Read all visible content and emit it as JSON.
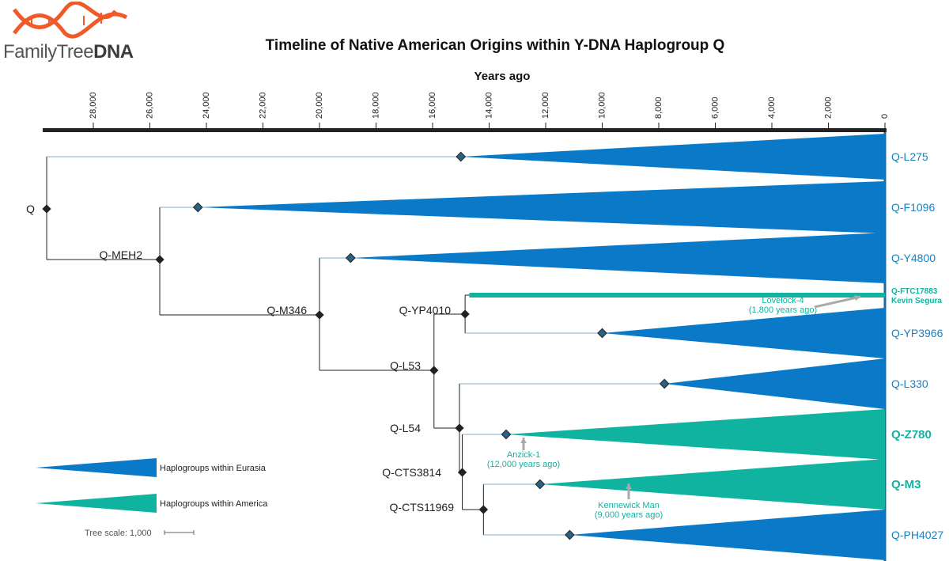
{
  "header": {
    "logo_text_plain": "FamilyTree",
    "logo_text_bold": "DNA",
    "title": "Timeline of Native American Origins within Y-DNA Haplogroup Q"
  },
  "colors": {
    "eurasia": "#0a7ac8",
    "america": "#10b3a0",
    "branch": "#222222",
    "axis": "#222222",
    "logo": "#f05a28"
  },
  "chart_data": {
    "type": "phylogenetic-timeline",
    "xlabel": "Years ago",
    "xlim": [
      30000,
      0
    ],
    "ticks": [
      28000,
      26000,
      24000,
      22000,
      20000,
      18000,
      16000,
      14000,
      12000,
      10000,
      8000,
      6000,
      4000,
      2000,
      0
    ],
    "tick_labels": [
      "28,000",
      "26,000",
      "24,000",
      "22,000",
      "20,000",
      "18,000",
      "16,000",
      "14,000",
      "12,000",
      "10,000",
      "8,000",
      "6,000",
      "4,000",
      "2,000",
      "0"
    ],
    "nodes": [
      {
        "name": "Q",
        "age": 29650
      },
      {
        "name": "Q-MEH2",
        "age": 25650
      },
      {
        "name": "Q-M346",
        "age": 20000
      },
      {
        "name": "Q-L53",
        "age": 15950
      },
      {
        "name": "Q-YP4010",
        "age": 14850
      },
      {
        "name": "Q-L54",
        "age": 15050
      },
      {
        "name": "Q-CTS3814",
        "age": 14950
      },
      {
        "name": "Q-CTS11969",
        "age": 14200
      }
    ],
    "haplogroups": [
      {
        "name": "Q-L275",
        "origin": "Eurasia",
        "tmrca": 15000
      },
      {
        "name": "Q-F1096",
        "origin": "Eurasia",
        "tmrca": 24300
      },
      {
        "name": "Q-Y4800",
        "origin": "Eurasia",
        "tmrca": 18900
      },
      {
        "name": "Q-YP3966",
        "origin": "Eurasia",
        "tmrca": 10000
      },
      {
        "name": "Q-L330",
        "origin": "Eurasia",
        "tmrca": 7800
      },
      {
        "name": "Q-Z780",
        "origin": "America",
        "tmrca": 13400
      },
      {
        "name": "Q-M3",
        "origin": "America",
        "tmrca": 12200
      },
      {
        "name": "Q-PH4027",
        "origin": "Eurasia",
        "tmrca": 11150
      }
    ],
    "lineage": {
      "name": "Q-FTC17883",
      "sublabel": "Kevin Segura",
      "age": 14700
    },
    "annotations": [
      {
        "name": "Lovelock-4",
        "detail": "(1,800 years ago)",
        "age": 1800
      },
      {
        "name": "Anzick-1",
        "detail": "(12,000 years ago)",
        "age": 12000
      },
      {
        "name": "Kennewick Man",
        "detail": "(9,000 years ago)",
        "age": 9000
      }
    ],
    "legend": [
      {
        "label": "Haplogroups within Eurasia",
        "origin": "Eurasia"
      },
      {
        "label": "Haplogroups within America",
        "origin": "America"
      }
    ],
    "tree_scale": "Tree scale: 1,000",
    "legend_position": "bottom-left"
  }
}
